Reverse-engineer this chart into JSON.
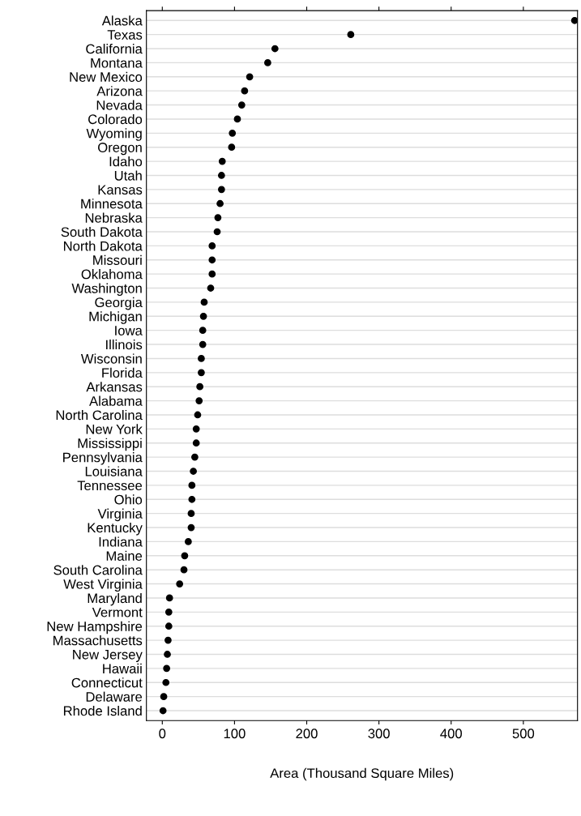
{
  "chart_data": {
    "type": "scatter",
    "xlabel": "Area (Thousand Square Miles)",
    "categories": [
      "Alaska",
      "Texas",
      "California",
      "Montana",
      "New Mexico",
      "Arizona",
      "Nevada",
      "Colorado",
      "Wyoming",
      "Oregon",
      "Idaho",
      "Utah",
      "Kansas",
      "Minnesota",
      "Nebraska",
      "South Dakota",
      "North Dakota",
      "Missouri",
      "Oklahoma",
      "Washington",
      "Georgia",
      "Michigan",
      "Iowa",
      "Illinois",
      "Wisconsin",
      "Florida",
      "Arkansas",
      "Alabama",
      "North Carolina",
      "New York",
      "Mississippi",
      "Pennsylvania",
      "Louisiana",
      "Tennessee",
      "Ohio",
      "Virginia",
      "Kentucky",
      "Indiana",
      "Maine",
      "South Carolina",
      "West Virginia",
      "Maryland",
      "Vermont",
      "New Hampshire",
      "Massachusetts",
      "New Jersey",
      "Hawaii",
      "Connecticut",
      "Delaware",
      "Rhode Island"
    ],
    "orientation": "horizontal",
    "values": [
      571,
      261,
      156,
      146,
      121,
      114,
      110,
      104,
      97,
      96,
      83,
      82,
      82,
      80,
      77,
      76,
      69,
      69,
      69,
      67,
      58,
      57,
      56,
      56,
      54,
      54,
      52,
      51,
      49,
      47,
      47,
      45,
      43,
      41,
      41,
      40,
      40,
      36,
      31,
      30,
      24,
      10,
      9,
      9,
      8,
      7,
      6,
      5,
      2,
      1
    ],
    "color": "#000000",
    "marker": "circle",
    "xlim": [
      -22,
      575
    ],
    "xticks": [
      0,
      100,
      200,
      300,
      400,
      500
    ],
    "grid": "y"
  }
}
